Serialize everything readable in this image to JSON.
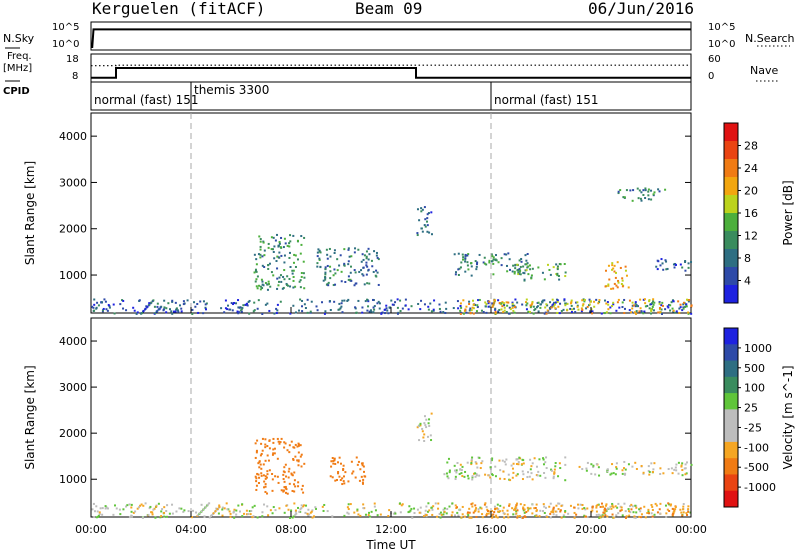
{
  "header": {
    "station": "Kerguelen (fitACF)",
    "beam": "Beam 09",
    "date": "06/Jun/2016"
  },
  "left_labels": {
    "nsky": "N.Sky",
    "freq_top": "Freq.",
    "freq_unit": "[MHz]",
    "cpid": "CPID"
  },
  "right_labels": {
    "nsearch": "N.Search",
    "nave": "Nave"
  },
  "axis_labels": {
    "nsky_ticks": [
      "10^5",
      "10^0"
    ],
    "freq_ticks": [
      "18",
      "8"
    ],
    "nsearch_ticks": [
      "10^5",
      "10^0"
    ],
    "nave_ticks": [
      "60",
      "0"
    ]
  },
  "cpid_segments": [
    {
      "label": "normal (fast) 151",
      "start": 0,
      "end": 4
    },
    {
      "label": "themis 3300",
      "start": 4,
      "end": 16
    },
    {
      "label": "normal (fast) 151",
      "start": 16,
      "end": 24
    }
  ],
  "colors": {
    "power_scale": [
      "#1e22e0",
      "#2e4aa8",
      "#2e6e82",
      "#3a8c5e",
      "#4caf3c",
      "#bcd31c",
      "#f2a60f",
      "#f07b14",
      "#ea4412",
      "#e01212"
    ],
    "velocity_scale": [
      "#e01212",
      "#ea4412",
      "#f07b14",
      "#f5a623",
      "#bdbdbd",
      "#bdbdbd",
      "#60c53a",
      "#3a8c5e",
      "#2e6e82",
      "#2e4aa8",
      "#1e22e0"
    ],
    "ground_scatter": "#bdbdbd"
  },
  "chart_data": [
    {
      "type": "line",
      "name": "sky-noise",
      "series": [
        {
          "name": "N.Sky",
          "x": [
            0,
            0.05,
            0.1,
            24
          ],
          "y_log10": [
            0,
            0,
            4,
            4
          ]
        }
      ]
    },
    {
      "type": "line",
      "name": "frequency-and-nave",
      "x": [
        0,
        1.0,
        1.0,
        13.0,
        13.0,
        24
      ],
      "series": [
        {
          "name": "Freq.",
          "values": [
            9.5,
            9.5,
            13,
            13,
            9.5,
            9.5
          ],
          "ylim": [
            8,
            18
          ],
          "style": "solid"
        },
        {
          "name": "Nave",
          "values": [
            35,
            35,
            36,
            36,
            36,
            36
          ],
          "ylim": [
            0,
            60
          ],
          "style": "dotted"
        }
      ]
    },
    {
      "type": "heatmap",
      "name": "power",
      "xlabel": "Time UT",
      "ylabel": "Slant Range [km]",
      "xlim": [
        0,
        24
      ],
      "ylim": [
        180,
        4500
      ],
      "xticks": [
        "00:00",
        "04:00",
        "08:00",
        "12:00",
        "16:00",
        "20:00",
        "00:00"
      ],
      "yticks": [
        1000,
        2000,
        3000,
        4000
      ],
      "colorbar_label": "Power [dB]",
      "colorbar_ticks": [
        4,
        8,
        12,
        16,
        20,
        24,
        28
      ],
      "colorbar_range": [
        0,
        30
      ],
      "echo_regions": [
        {
          "t0": 0,
          "t1": 24,
          "r0": 180,
          "r1": 500,
          "level": 6
        },
        {
          "t0": 6.5,
          "t1": 8.5,
          "r0": 700,
          "r1": 1900,
          "level": 10
        },
        {
          "t0": 9.0,
          "t1": 11.5,
          "r0": 800,
          "r1": 1600,
          "level": 8
        },
        {
          "t0": 13.0,
          "t1": 13.6,
          "r0": 1800,
          "r1": 2500,
          "level": 6
        },
        {
          "t0": 14.5,
          "t1": 17.5,
          "r0": 1000,
          "r1": 1500,
          "level": 9
        },
        {
          "t0": 17.0,
          "t1": 19.0,
          "r0": 900,
          "r1": 1300,
          "level": 12
        },
        {
          "t0": 20.5,
          "t1": 21.5,
          "r0": 700,
          "r1": 1300,
          "level": 20
        },
        {
          "t0": 21.0,
          "t1": 23.0,
          "r0": 2600,
          "r1": 2900,
          "level": 8
        },
        {
          "t0": 22.5,
          "t1": 24,
          "r0": 1100,
          "r1": 1400,
          "level": 6
        },
        {
          "t0": 14.5,
          "t1": 24,
          "r0": 180,
          "r1": 500,
          "level": 18
        }
      ]
    },
    {
      "type": "heatmap",
      "name": "velocity",
      "xlabel": "Time UT",
      "ylabel": "Slant Range [km]",
      "xlim": [
        0,
        24
      ],
      "ylim": [
        180,
        4500
      ],
      "xticks": [
        "00:00",
        "04:00",
        "08:00",
        "12:00",
        "16:00",
        "20:00",
        "00:00"
      ],
      "yticks": [
        1000,
        2000,
        3000,
        4000
      ],
      "colorbar_label": "Velocity [m s^-1]",
      "colorbar_ticks": [
        1000,
        500,
        100,
        25,
        -25,
        -100,
        -500,
        -1000
      ],
      "echo_regions": [
        {
          "t0": 0,
          "t1": 24,
          "r0": 180,
          "r1": 500,
          "vel": 0
        },
        {
          "t0": 6.5,
          "t1": 8.5,
          "r0": 700,
          "r1": 1900,
          "vel": -300
        },
        {
          "t0": 9.5,
          "t1": 11.0,
          "r0": 900,
          "r1": 1500,
          "vel": -400
        },
        {
          "t0": 13.0,
          "t1": 13.6,
          "r0": 1800,
          "r1": 2500,
          "vel": 0
        },
        {
          "t0": 14.0,
          "t1": 19.0,
          "r0": 1000,
          "r1": 1500,
          "vel": 0
        },
        {
          "t0": 19.5,
          "t1": 24,
          "r0": 1100,
          "r1": 1400,
          "vel": 0
        },
        {
          "t0": 14.5,
          "t1": 24,
          "r0": 180,
          "r1": 500,
          "vel": -80
        }
      ]
    }
  ]
}
